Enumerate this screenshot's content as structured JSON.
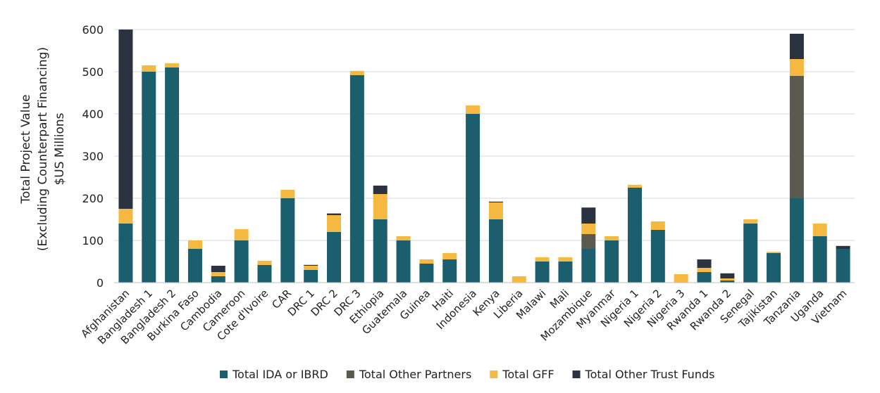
{
  "chart_data": {
    "type": "bar",
    "stacked": true,
    "title": "",
    "ylabel": [
      "Total Project Value",
      "(Excluding Counterpart Financing)",
      "$US Millions"
    ],
    "xlabel": "",
    "ylim": [
      0,
      600
    ],
    "yticks": [
      0,
      100,
      200,
      300,
      400,
      500,
      600
    ],
    "grid": true,
    "legend": "bottom",
    "categories": [
      "Afghanistan",
      "Bangladesh 1",
      "Bangladesh 2",
      "Burkina Faso",
      "Cambodia",
      "Cameroon",
      "Cote d'Ivoire",
      "CAR",
      "DRC 1",
      "DRC 2",
      "DRC 3",
      "Ethiopia",
      "Guatemala",
      "Guinea",
      "Haiti",
      "Indonesia",
      "Kenya",
      "Liberia",
      "Malawi",
      "Mali",
      "Mozambique",
      "Myanmar",
      "Nigeria 1",
      "Nigeria 2",
      "Nigeria 3",
      "Rwanda 1",
      "Rwanda 2",
      "Senegal",
      "Tajikistan",
      "Tanzania",
      "Uganda",
      "Vietnam"
    ],
    "series": [
      {
        "name": "Total IDA or IBRD",
        "color": "#1b5e6e",
        "values": [
          140,
          500,
          510,
          80,
          15,
          100,
          42,
          200,
          30,
          120,
          492,
          150,
          100,
          45,
          55,
          400,
          150,
          0,
          50,
          50,
          80,
          100,
          225,
          125,
          0,
          25,
          5,
          140,
          70,
          200,
          110,
          80
        ]
      },
      {
        "name": "Total Other Partners",
        "color": "#5b5a4f",
        "values": [
          0,
          0,
          0,
          0,
          0,
          0,
          0,
          0,
          0,
          0,
          0,
          0,
          0,
          0,
          0,
          0,
          0,
          0,
          0,
          0,
          35,
          0,
          0,
          0,
          0,
          0,
          0,
          0,
          0,
          290,
          0,
          0
        ]
      },
      {
        "name": "Total GFF",
        "color": "#f5b841",
        "values": [
          35,
          15,
          10,
          20,
          10,
          27,
          10,
          20,
          10,
          40,
          10,
          60,
          10,
          10,
          15,
          20,
          40,
          15,
          10,
          10,
          25,
          10,
          7,
          20,
          20,
          10,
          5,
          10,
          3,
          40,
          30,
          0
        ]
      },
      {
        "name": "Total Other Trust Funds",
        "color": "#2b3340",
        "values": [
          425,
          0,
          0,
          0,
          15,
          0,
          0,
          0,
          2,
          4,
          0,
          20,
          0,
          0,
          0,
          0,
          2,
          0,
          0,
          0,
          38,
          0,
          0,
          0,
          0,
          20,
          12,
          0,
          0,
          60,
          0,
          7
        ]
      }
    ]
  }
}
